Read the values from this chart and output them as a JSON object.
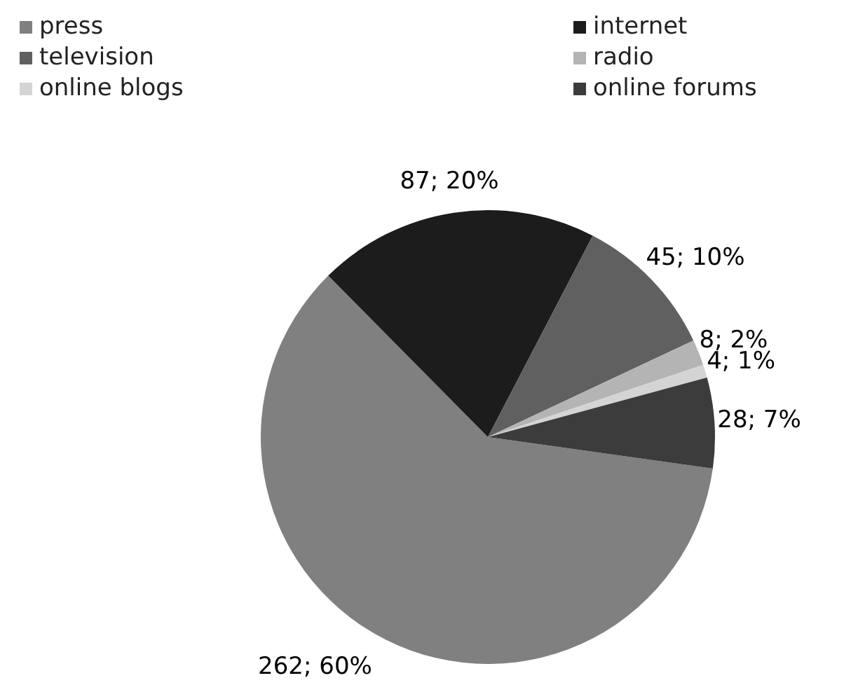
{
  "chart_data": {
    "type": "pie",
    "categories": [
      "press",
      "internet",
      "television",
      "radio",
      "online blogs",
      "online forums"
    ],
    "values": [
      262,
      87,
      45,
      8,
      4,
      28
    ],
    "value_labels": [
      "262; 60%",
      "87; 20%",
      "45; 10%",
      "8; 2%",
      "4; 1%",
      "28; 7%"
    ],
    "colors": [
      "#808080",
      "#1c1c1c",
      "#606060",
      "#b4b4b4",
      "#d4d4d4",
      "#3c3c3c"
    ],
    "legend": "top"
  }
}
